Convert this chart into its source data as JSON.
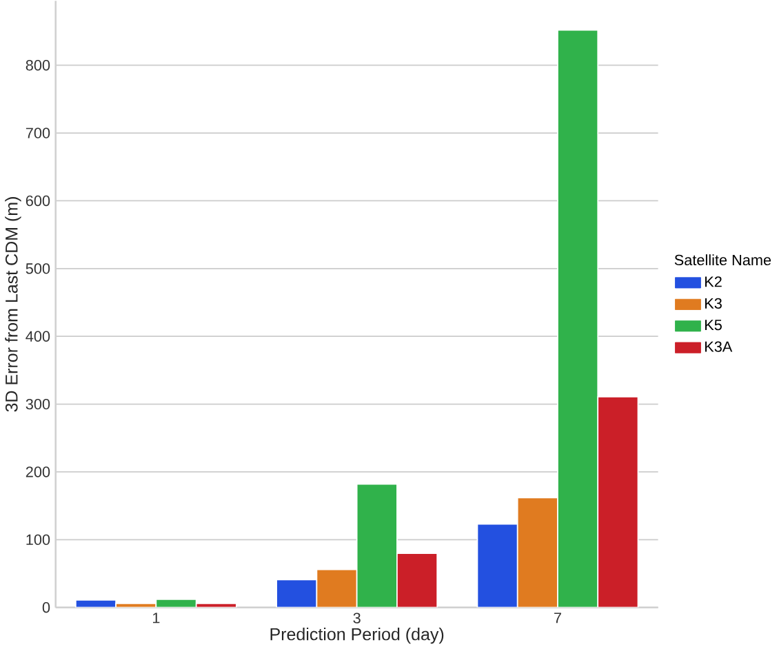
{
  "chart_data": {
    "type": "bar",
    "xlabel": "Prediction Period (day)",
    "ylabel": "3D Error from Last CDM (m)",
    "legend_title": "Satellite Name",
    "categories": [
      "1",
      "3",
      "7"
    ],
    "series": [
      {
        "name": "K2",
        "color": "#2350e0",
        "values": [
          11,
          41,
          123
        ]
      },
      {
        "name": "K3",
        "color": "#e07b20",
        "values": [
          6,
          56,
          162
        ]
      },
      {
        "name": "K5",
        "color": "#30b24b",
        "values": [
          12,
          182,
          852
        ]
      },
      {
        "name": "K3A",
        "color": "#cb1f28",
        "values": [
          6,
          80,
          311
        ]
      }
    ],
    "ylim": [
      0,
      895
    ],
    "yticks": [
      0,
      100,
      200,
      300,
      400,
      500,
      600,
      700,
      800
    ],
    "grid": "y",
    "legend": "right"
  }
}
